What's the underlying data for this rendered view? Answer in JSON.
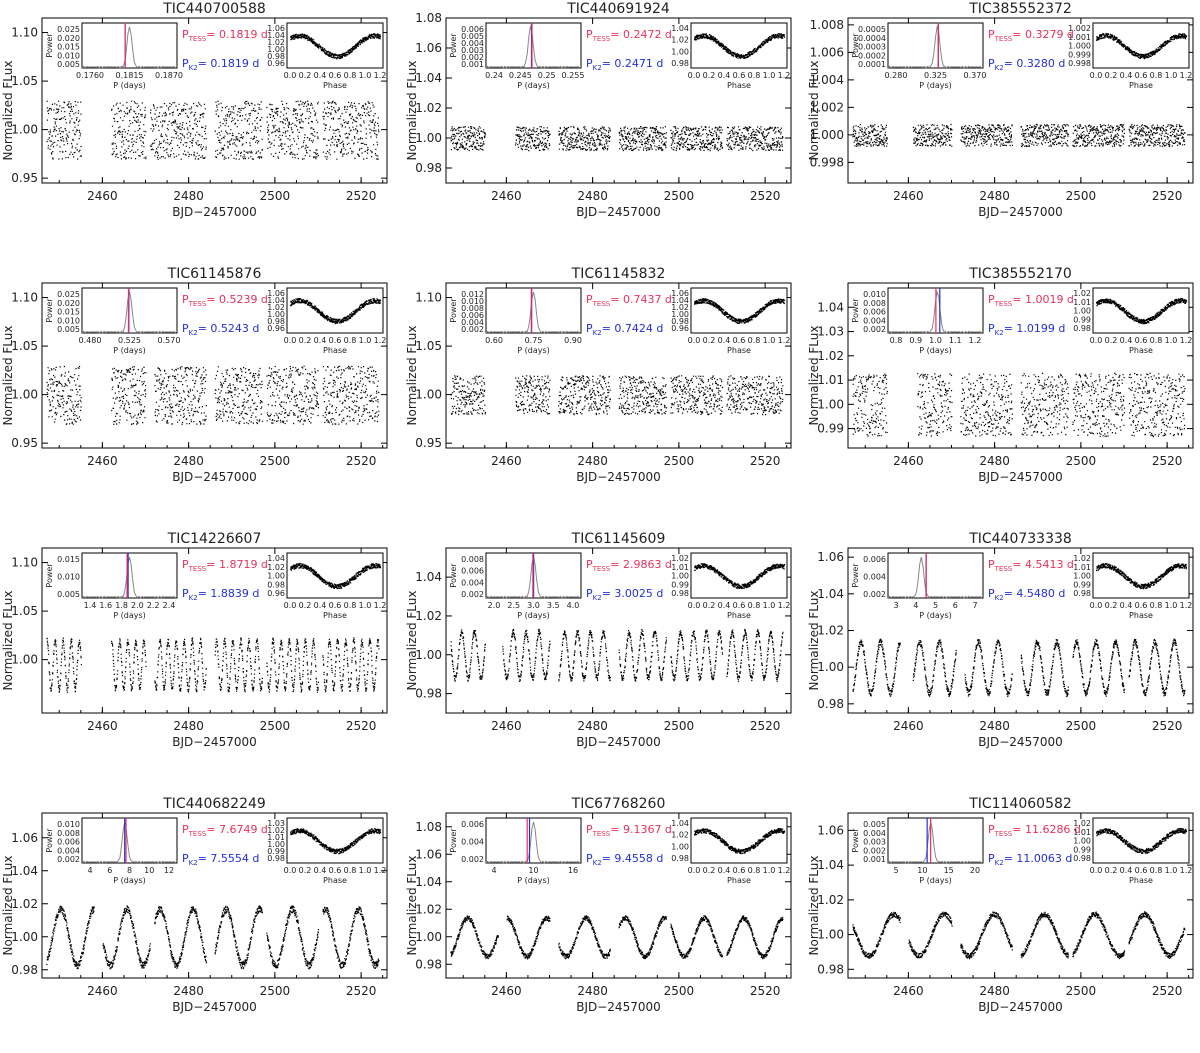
{
  "axis_labels": {
    "main_x": "BJD−2457000",
    "main_y": "Normalized FLux",
    "periodogram_x": "P (days)",
    "periodogram_y": "Power",
    "phase_x": "Phase",
    "p_tess_prefix": "P",
    "p_tess_sub": "TESS",
    "p_k2_prefix": "P",
    "p_k2_sub": "K2",
    "eq": "=",
    "unit": "d"
  },
  "chart_data": [
    {
      "type": "scatter",
      "title": "TIC440700588",
      "period_tess": "0.1819",
      "period_k2": "0.1819",
      "xlim": [
        2446,
        2526
      ],
      "ylim": [
        0.945,
        1.115
      ],
      "yticks": [
        "0.95",
        "1.00",
        "1.05",
        "1.10"
      ],
      "xticks": [
        "2460",
        "2480",
        "2500",
        "2520"
      ],
      "amplitude": 0.03,
      "baseline": 1.0,
      "trend": 0.0,
      "periodogram": {
        "ticks": [
          "0.1760",
          "0.1815",
          "0.1870"
        ],
        "yticks": [
          "0.025",
          "0.020",
          "0.015",
          "0.010",
          "0.005"
        ],
        "peak": 0.5,
        "xlim": [
          0.176,
          0.189
        ]
      },
      "phase": {
        "yticks": [
          "1.06",
          "1.04",
          "1.02",
          "1.00",
          "0.98",
          "0.96"
        ],
        "xticks": [
          "0.0",
          "0.2",
          "0.4",
          "0.6",
          "0.8",
          "1.0",
          "1.2"
        ]
      },
      "segments": [
        [
          2447,
          2455
        ],
        [
          2462,
          2470
        ],
        [
          2471,
          2484
        ],
        [
          2486,
          2497
        ],
        [
          2498,
          2510
        ],
        [
          2511,
          2524
        ]
      ]
    },
    {
      "type": "scatter",
      "title": "TIC440691924",
      "period_tess": "0.2472",
      "period_k2": "0.2471",
      "xlim": [
        2446,
        2526
      ],
      "ylim": [
        0.97,
        1.08
      ],
      "yticks": [
        "0.98",
        "1.00",
        "1.02",
        "1.04",
        "1.06",
        "1.08"
      ],
      "xticks": [
        "2460",
        "2480",
        "2500",
        "2520"
      ],
      "amplitude": 0.008,
      "baseline": 1.0,
      "trend": 0.0,
      "periodogram": {
        "ticks": [
          "0.24",
          "0.245",
          "0.25",
          "0.255"
        ],
        "yticks": [
          "0.006",
          "0.005",
          "0.004",
          "0.003",
          "0.002",
          "0.001"
        ],
        "peak": 0.47,
        "xlim": [
          0.238,
          0.257
        ]
      },
      "phase": {
        "yticks": [
          "1.04",
          "1.02",
          "1.00",
          "0.98"
        ],
        "xticks": [
          "0.0",
          "0.2",
          "0.4",
          "0.6",
          "0.8",
          "1.0",
          "1.2"
        ]
      },
      "segments": [
        [
          2447,
          2455
        ],
        [
          2462,
          2470
        ],
        [
          2472,
          2484
        ],
        [
          2486,
          2497
        ],
        [
          2498,
          2510
        ],
        [
          2511,
          2524
        ]
      ]
    },
    {
      "type": "scatter",
      "title": "TIC385552372",
      "period_tess": "0.3279",
      "period_k2": "0.3280",
      "xlim": [
        2446,
        2526
      ],
      "ylim": [
        0.9965,
        1.0085
      ],
      "yticks": [
        "0.998",
        "1.000",
        "1.002",
        "1.004",
        "1.006",
        "1.008"
      ],
      "xticks": [
        "2460",
        "2480",
        "2500",
        "2520"
      ],
      "amplitude": 0.0008,
      "baseline": 1.0,
      "trend": 0.0,
      "periodogram": {
        "ticks": [
          "0.280",
          "0.325",
          "0.370"
        ],
        "yticks": [
          "0.0005",
          "0.0004",
          "0.0003",
          "0.0002",
          "0.0001"
        ],
        "peak": 0.52,
        "xlim": [
          0.275,
          0.375
        ]
      },
      "phase": {
        "yticks": [
          "1.002",
          "1.001",
          "1.000",
          "0.999",
          "0.998"
        ],
        "xticks": [
          "0.0",
          "0.2",
          "0.4",
          "0.6",
          "0.8",
          "1.0",
          "1.2"
        ]
      },
      "segments": [
        [
          2447,
          2455
        ],
        [
          2461,
          2470
        ],
        [
          2472,
          2484
        ],
        [
          2486,
          2497
        ],
        [
          2498,
          2510
        ],
        [
          2511,
          2524
        ]
      ]
    },
    {
      "type": "scatter",
      "title": "TIC61145876",
      "period_tess": "0.5239",
      "period_k2": "0.5243",
      "xlim": [
        2446,
        2526
      ],
      "ylim": [
        0.945,
        1.115
      ],
      "yticks": [
        "0.95",
        "1.00",
        "1.05",
        "1.10"
      ],
      "xticks": [
        "2460",
        "2480",
        "2500",
        "2520"
      ],
      "amplitude": 0.03,
      "baseline": 1.0,
      "trend": 0.0,
      "periodogram": {
        "ticks": [
          "0.480",
          "0.525",
          "0.570"
        ],
        "yticks": [
          "0.025",
          "0.020",
          "0.015",
          "0.010",
          "0.005"
        ],
        "peak": 0.5,
        "xlim": [
          0.475,
          0.575
        ]
      },
      "phase": {
        "yticks": [
          "1.06",
          "1.04",
          "1.02",
          "1.00",
          "0.98",
          "0.96"
        ],
        "xticks": [
          "0.0",
          "0.2",
          "0.4",
          "0.6",
          "0.8",
          "1.0",
          "1.2"
        ]
      },
      "segments": [
        [
          2447,
          2455
        ],
        [
          2462,
          2470
        ],
        [
          2472,
          2484
        ],
        [
          2486,
          2497
        ],
        [
          2498,
          2510
        ],
        [
          2511,
          2524
        ]
      ]
    },
    {
      "type": "scatter",
      "title": "TIC61145832",
      "period_tess": "0.7437",
      "period_k2": "0.7424",
      "xlim": [
        2446,
        2526
      ],
      "ylim": [
        0.945,
        1.115
      ],
      "yticks": [
        "0.95",
        "1.00",
        "1.05",
        "1.10"
      ],
      "xticks": [
        "2460",
        "2480",
        "2500",
        "2520"
      ],
      "amplitude": 0.02,
      "baseline": 1.0,
      "trend": 0.0,
      "periodogram": {
        "ticks": [
          "0.60",
          "0.75",
          "0.90"
        ],
        "yticks": [
          "0.012",
          "0.010",
          "0.008",
          "0.006",
          "0.004",
          "0.002"
        ],
        "peak": 0.5,
        "xlim": [
          0.58,
          0.92
        ]
      },
      "phase": {
        "yticks": [
          "1.06",
          "1.04",
          "1.02",
          "1.00",
          "0.98",
          "0.96"
        ],
        "xticks": [
          "0.0",
          "0.2",
          "0.4",
          "0.6",
          "0.8",
          "1.0",
          "1.2"
        ]
      },
      "segments": [
        [
          2447,
          2455
        ],
        [
          2462,
          2470
        ],
        [
          2472,
          2484
        ],
        [
          2486,
          2497
        ],
        [
          2498,
          2510
        ],
        [
          2511,
          2524
        ]
      ]
    },
    {
      "type": "scatter",
      "title": "TIC385552170",
      "period_tess": "1.0019",
      "period_k2": "1.0199",
      "xlim": [
        2446,
        2526
      ],
      "ylim": [
        0.982,
        1.05
      ],
      "yticks": [
        "0.99",
        "1.00",
        "1.01",
        "1.02",
        "1.03",
        "1.04"
      ],
      "xticks": [
        "2460",
        "2480",
        "2500",
        "2520"
      ],
      "amplitude": 0.013,
      "baseline": 1.0,
      "trend": 0.0,
      "periodogram": {
        "ticks": [
          "0.8",
          "0.9",
          "1.0",
          "1.1",
          "1.2"
        ],
        "yticks": [
          "0.010",
          "0.008",
          "0.006",
          "0.004",
          "0.002"
        ],
        "peak": 0.52,
        "xlim": [
          0.78,
          1.22
        ]
      },
      "phase": {
        "yticks": [
          "1.02",
          "1.01",
          "1.00",
          "0.99",
          "0.98"
        ],
        "xticks": [
          "0.0",
          "0.2",
          "0.4",
          "0.6",
          "0.8",
          "1.0",
          "1.2"
        ]
      },
      "segments": [
        [
          2447,
          2455
        ],
        [
          2462,
          2470
        ],
        [
          2472,
          2484
        ],
        [
          2486,
          2497
        ],
        [
          2498,
          2510
        ],
        [
          2511,
          2524
        ]
      ]
    },
    {
      "type": "scatter",
      "title": "TIC14226607",
      "period_tess": "1.8719",
      "period_k2": "1.8839",
      "xlim": [
        2446,
        2526
      ],
      "ylim": [
        0.945,
        1.115
      ],
      "yticks": [
        "1.00",
        "1.05",
        "1.10"
      ],
      "xticks": [
        "2460",
        "2480",
        "2500",
        "2520"
      ],
      "amplitude": 0.025,
      "baseline": 0.995,
      "trend": 0.0,
      "periodogram": {
        "ticks": [
          "1.4",
          "1.6",
          "1.8",
          "2.0",
          "2.2",
          "2.4"
        ],
        "yticks": [
          "0.015",
          "0.010",
          "0.005"
        ],
        "peak": 0.5,
        "xlim": [
          1.35,
          2.45
        ]
      },
      "phase": {
        "yticks": [
          "1.04",
          "1.02",
          "1.00",
          "0.98",
          "0.96"
        ],
        "xticks": [
          "0.0",
          "0.2",
          "0.4",
          "0.6",
          "0.8",
          "1.0",
          "1.2"
        ]
      },
      "segments": [
        [
          2447,
          2455
        ],
        [
          2462,
          2470
        ],
        [
          2472,
          2484
        ],
        [
          2486,
          2497
        ],
        [
          2498,
          2510
        ],
        [
          2511,
          2524
        ]
      ]
    },
    {
      "type": "line",
      "title": "TIC61145609",
      "period_tess": "2.9863",
      "period_k2": "3.0025",
      "xlim": [
        2446,
        2526
      ],
      "ylim": [
        0.97,
        1.055
      ],
      "yticks": [
        "0.98",
        "1.00",
        "1.02",
        "1.04"
      ],
      "xticks": [
        "2460",
        "2480",
        "2500",
        "2520"
      ],
      "amplitude": 0.012,
      "baseline": 1.0,
      "trend": 0.0,
      "periodogram": {
        "ticks": [
          "2.0",
          "2.5",
          "3.0",
          "3.5",
          "4.0"
        ],
        "yticks": [
          "0.008",
          "0.006",
          "0.004",
          "0.002"
        ],
        "peak": 0.5,
        "xlim": [
          1.9,
          4.1
        ]
      },
      "phase": {
        "yticks": [
          "1.02",
          "1.01",
          "1.00",
          "0.99",
          "0.98"
        ],
        "xticks": [
          "0.0",
          "0.2",
          "0.4",
          "0.6",
          "0.8",
          "1.0",
          "1.2"
        ]
      },
      "segments": [
        [
          2447,
          2455
        ],
        [
          2459,
          2470
        ],
        [
          2472,
          2484
        ],
        [
          2486,
          2497
        ],
        [
          2498,
          2510
        ],
        [
          2511,
          2524
        ]
      ]
    },
    {
      "type": "line",
      "title": "TIC440733338",
      "period_tess": "4.5413",
      "period_k2": "4.5480",
      "xlim": [
        2446,
        2526
      ],
      "ylim": [
        0.975,
        1.065
      ],
      "yticks": [
        "0.98",
        "1.00",
        "1.02",
        "1.04",
        "1.06"
      ],
      "xticks": [
        "2460",
        "2480",
        "2500",
        "2520"
      ],
      "amplitude": 0.014,
      "baseline": 1.0,
      "trend": 0.0,
      "periodogram": {
        "ticks": [
          "3",
          "4",
          "5",
          "6",
          "7"
        ],
        "yticks": [
          "0.006",
          "0.004",
          "0.002"
        ],
        "peak": 0.35,
        "xlim": [
          2.7,
          7.3
        ]
      },
      "phase": {
        "yticks": [
          "1.02",
          "1.01",
          "1.00",
          "0.99",
          "0.98"
        ],
        "xticks": [
          "0.0",
          "0.2",
          "0.4",
          "0.6",
          "0.8",
          "1.0",
          "1.2"
        ]
      },
      "segments": [
        [
          2447,
          2458
        ],
        [
          2461,
          2471
        ],
        [
          2473,
          2484
        ],
        [
          2486,
          2497
        ],
        [
          2498,
          2510
        ],
        [
          2511,
          2524
        ]
      ]
    },
    {
      "type": "scatter",
      "title": "TIC440682249",
      "period_tess": "7.6749",
      "period_k2": "7.5554",
      "xlim": [
        2446,
        2526
      ],
      "ylim": [
        0.975,
        1.075
      ],
      "yticks": [
        "0.98",
        "1.00",
        "1.02",
        "1.04",
        "1.06"
      ],
      "xticks": [
        "2460",
        "2480",
        "2500",
        "2520"
      ],
      "amplitude": 0.017,
      "baseline": 1.0,
      "trend": 0.0,
      "periodogram": {
        "ticks": [
          "4",
          "6",
          "8",
          "10",
          "12"
        ],
        "yticks": [
          "0.010",
          "0.008",
          "0.006",
          "0.004",
          "0.002"
        ],
        "peak": 0.45,
        "xlim": [
          3.6,
          12.4
        ]
      },
      "phase": {
        "yticks": [
          "1.03",
          "1.02",
          "1.01",
          "1.00",
          "0.99",
          "0.98"
        ],
        "xticks": [
          "0.0",
          "0.2",
          "0.4",
          "0.6",
          "0.8",
          "1.0",
          "1.2"
        ]
      },
      "segments": [
        [
          2447,
          2458
        ],
        [
          2460,
          2471
        ],
        [
          2472,
          2484
        ],
        [
          2486,
          2497
        ],
        [
          2498,
          2510
        ],
        [
          2511,
          2524
        ]
      ]
    },
    {
      "type": "scatter",
      "title": "TIC67768260",
      "period_tess": "9.1367",
      "period_k2": "9.4558",
      "xlim": [
        2446,
        2526
      ],
      "ylim": [
        0.97,
        1.09
      ],
      "yticks": [
        "0.98",
        "1.00",
        "1.02",
        "1.04",
        "1.06",
        "1.08"
      ],
      "xticks": [
        "2460",
        "2480",
        "2500",
        "2520"
      ],
      "amplitude": 0.014,
      "baseline": 1.0,
      "trend": 0.0,
      "periodogram": {
        "ticks": [
          "4",
          "10",
          "16"
        ],
        "yticks": [
          "0.006",
          "0.004",
          "0.002"
        ],
        "peak": 0.5,
        "xlim": [
          3.5,
          16.5
        ]
      },
      "phase": {
        "yticks": [
          "1.04",
          "1.02",
          "1.00",
          "0.98"
        ],
        "xticks": [
          "0.0",
          "0.2",
          "0.4",
          "0.6",
          "0.8",
          "1.0",
          "1.2"
        ]
      },
      "segments": [
        [
          2447,
          2458
        ],
        [
          2460,
          2470
        ],
        [
          2472,
          2484
        ],
        [
          2486,
          2497
        ],
        [
          2498,
          2510
        ],
        [
          2511,
          2524
        ]
      ]
    },
    {
      "type": "scatter",
      "title": "TIC114060582",
      "period_tess": "11.6286",
      "period_k2": "11.0063",
      "xlim": [
        2446,
        2526
      ],
      "ylim": [
        0.975,
        1.07
      ],
      "yticks": [
        "0.98",
        "1.00",
        "1.02",
        "1.04",
        "1.06"
      ],
      "xticks": [
        "2460",
        "2480",
        "2500",
        "2520"
      ],
      "amplitude": 0.012,
      "baseline": 1.0,
      "trend": 0.0,
      "periodogram": {
        "ticks": [
          "5",
          "10",
          "15",
          "20"
        ],
        "yticks": [
          "0.005",
          "0.004",
          "0.003",
          "0.002",
          "0.001"
        ],
        "peak": 0.45,
        "xlim": [
          4,
          21
        ]
      },
      "phase": {
        "yticks": [
          "1.02",
          "1.01",
          "1.00",
          "0.99",
          "0.98"
        ],
        "xticks": [
          "0.0",
          "0.2",
          "0.4",
          "0.6",
          "0.8",
          "1.0",
          "1.2"
        ]
      },
      "segments": [
        [
          2447,
          2458
        ],
        [
          2460,
          2470
        ],
        [
          2472,
          2484
        ],
        [
          2486,
          2497
        ],
        [
          2498,
          2510
        ],
        [
          2511,
          2524
        ]
      ]
    }
  ],
  "colors": {
    "tess": "#e8315a",
    "k2": "#2230d6",
    "axis": "#000000",
    "curve": "#888888"
  }
}
